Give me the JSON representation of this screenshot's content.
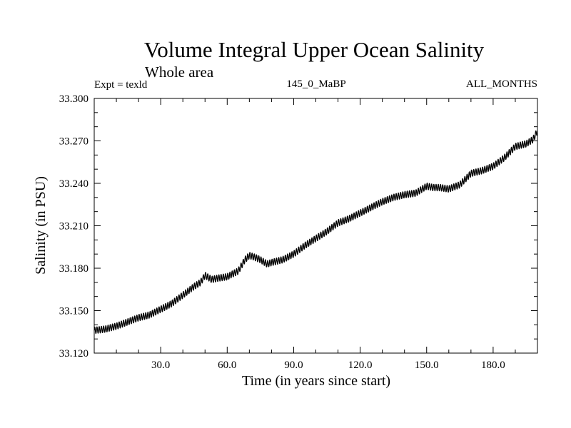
{
  "colors": {
    "background": "#ffffff",
    "ink": "#000000"
  },
  "chart_data": {
    "type": "line",
    "title": "Volume Integral Upper Ocean Salinity",
    "subtitle": "Whole area",
    "annotations": {
      "left": "Expt = texld",
      "center": "145_0_MaBP",
      "right": "ALL_MONTHS"
    },
    "xlabel": "Time (in years since start)",
    "ylabel": "Salinity (in PSU)",
    "xlim": [
      0,
      200
    ],
    "ylim": [
      33.12,
      33.3
    ],
    "x_ticks": [
      30,
      60,
      90,
      120,
      150,
      180
    ],
    "x_tick_labels": [
      "30.0",
      "60.0",
      "90.0",
      "120.0",
      "150.0",
      "180.0"
    ],
    "y_ticks": [
      33.12,
      33.15,
      33.18,
      33.21,
      33.24,
      33.27,
      33.3
    ],
    "y_tick_labels": [
      "33.120",
      "33.150",
      "33.180",
      "33.210",
      "33.240",
      "33.270",
      "33.300"
    ],
    "grid": false,
    "series": [
      {
        "name": "Salinity",
        "seasonal_amplitude": 0.0023,
        "x": [
          0,
          5,
          10,
          15,
          20,
          25,
          30,
          35,
          40,
          45,
          48,
          50,
          53,
          56,
          60,
          65,
          68,
          70,
          72,
          75,
          78,
          80,
          85,
          90,
          95,
          100,
          105,
          110,
          115,
          120,
          125,
          130,
          135,
          140,
          145,
          148,
          150,
          153,
          156,
          160,
          165,
          170,
          175,
          180,
          185,
          190,
          195,
          198,
          200
        ],
        "values": [
          33.136,
          33.137,
          33.139,
          33.142,
          33.145,
          33.147,
          33.151,
          33.155,
          33.161,
          33.167,
          33.17,
          33.175,
          33.172,
          33.173,
          33.174,
          33.178,
          33.186,
          33.189,
          33.188,
          33.186,
          33.183,
          33.184,
          33.186,
          33.19,
          33.196,
          33.201,
          33.206,
          33.212,
          33.215,
          33.219,
          33.223,
          33.227,
          33.23,
          33.232,
          33.233,
          33.236,
          33.238,
          33.237,
          33.237,
          33.236,
          33.239,
          33.247,
          33.249,
          33.252,
          33.258,
          33.266,
          33.268,
          33.271,
          33.277
        ]
      }
    ]
  }
}
